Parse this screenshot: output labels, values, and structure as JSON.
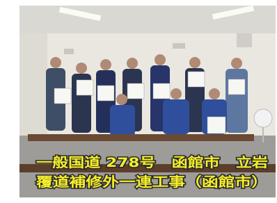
{
  "caption": {
    "lines": [
      "一般国道 278号　函館市　立岩",
      "覆道補修外一連工事（函館市）"
    ]
  }
}
